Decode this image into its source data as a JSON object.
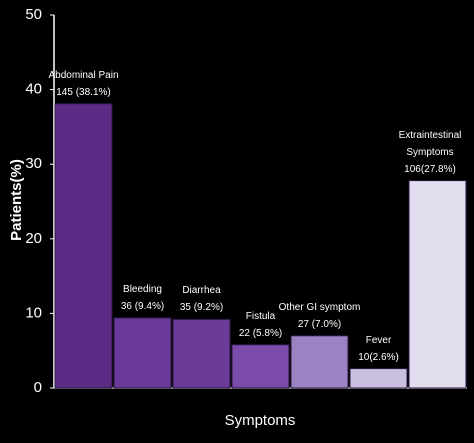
{
  "chart_data": {
    "type": "bar",
    "x_label": "Symptoms",
    "y_label": "Patients(%)",
    "categories": [
      "Abdominal Pain",
      "Bleeding",
      "Diarrhea",
      "Fistula",
      "Other GI symptom",
      "Fever",
      "Extraintestinal Symptoms"
    ],
    "values": [
      38.1,
      9.4,
      9.2,
      5.8,
      7.0,
      2.6,
      27.8
    ],
    "value_labels": [
      "145 (38.1%)",
      "36 (9.4%)",
      "35 (9.2%)",
      "22 (5.8%)",
      "27 (7.0%)",
      "10(2.6%)",
      "106(27.8%)"
    ],
    "colors": [
      "#5b2b86",
      "#6a3a9a",
      "#6b3b99",
      "#7b4bab",
      "#9b82c3",
      "#cbbfe1",
      "#e3ddf0"
    ],
    "ylim": [
      0,
      50
    ],
    "yticks": [
      0,
      10,
      20,
      30,
      40,
      50
    ],
    "grid": false
  }
}
